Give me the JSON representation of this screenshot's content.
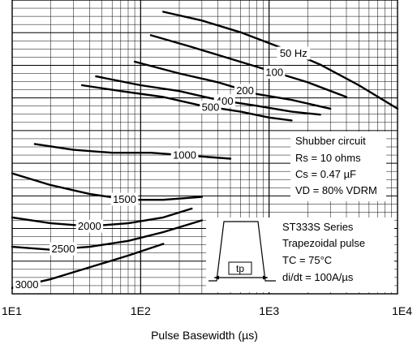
{
  "chart_data": {
    "type": "line",
    "xlabel": "Pulse Basewidth (µs)",
    "x_scale": "log",
    "xlim": [
      10,
      10000
    ],
    "x_ticks": [
      {
        "value": 10,
        "label": "1E1"
      },
      {
        "value": 100,
        "label": "1E2"
      },
      {
        "value": 1000,
        "label": "1E3"
      },
      {
        "value": 10000,
        "label": "1E4"
      }
    ],
    "grid": true,
    "series": [
      {
        "name": "50 Hz",
        "label": "50 Hz",
        "label_x": 1550,
        "x": [
          150,
          300,
          600,
          1200,
          2500,
          5000,
          10000
        ],
        "y": [
          0.96,
          0.93,
          0.89,
          0.84,
          0.78,
          0.71,
          0.63
        ]
      },
      {
        "name": "100",
        "label": "100",
        "label_x": 1100,
        "x": [
          120,
          250,
          500,
          1000,
          2000,
          4000
        ],
        "y": [
          0.88,
          0.84,
          0.8,
          0.76,
          0.72,
          0.67
        ]
      },
      {
        "name": "200",
        "label": "200",
        "label_x": 650,
        "x": [
          90,
          200,
          400,
          800,
          1500,
          3000
        ],
        "y": [
          0.79,
          0.75,
          0.72,
          0.68,
          0.66,
          0.63
        ]
      },
      {
        "name": "400",
        "label": "400",
        "label_x": 450,
        "x": [
          45,
          100,
          200,
          400,
          800,
          1500,
          2500
        ],
        "y": [
          0.74,
          0.71,
          0.69,
          0.66,
          0.64,
          0.62,
          0.61
        ]
      },
      {
        "name": "500",
        "label": "500",
        "label_x": 350,
        "x": [
          35,
          70,
          150,
          300,
          600,
          1000,
          1500
        ],
        "y": [
          0.71,
          0.69,
          0.67,
          0.64,
          0.62,
          0.6,
          0.59
        ]
      },
      {
        "name": "1000",
        "label": "1000",
        "label_x": 220,
        "x": [
          15,
          30,
          60,
          120,
          250,
          500
        ],
        "y": [
          0.51,
          0.49,
          0.48,
          0.48,
          0.47,
          0.46
        ]
      },
      {
        "name": "1500",
        "label": "1500",
        "label_x": 75,
        "x": [
          10,
          20,
          40,
          80,
          150,
          300
        ],
        "y": [
          0.41,
          0.37,
          0.34,
          0.32,
          0.32,
          0.33
        ]
      },
      {
        "name": "2000",
        "label": "2000",
        "label_x": 40,
        "x": [
          10,
          20,
          40,
          80,
          150,
          250
        ],
        "y": [
          0.26,
          0.24,
          0.23,
          0.24,
          0.26,
          0.29
        ]
      },
      {
        "name": "2500",
        "label": "2500",
        "label_x": 25,
        "x": [
          10,
          20,
          40,
          80,
          150,
          300
        ],
        "y": [
          0.16,
          0.15,
          0.16,
          0.18,
          0.21,
          0.25
        ]
      },
      {
        "name": "3000",
        "label": "3000",
        "label_x": 13,
        "x": [
          10,
          20,
          40,
          80,
          150
        ],
        "y": [
          0.02,
          0.05,
          0.09,
          0.13,
          0.17
        ]
      }
    ],
    "annotations": {
      "snubber": [
        "Shubber circuit",
        "Rs = 10 ohms",
        "Cs = 0.47 µF",
        "VD = 80% VDRM"
      ],
      "series_box": [
        "ST333S Series",
        "Trapezoidal pulse",
        "TC = 75°C",
        "di/dt = 100A/µs"
      ],
      "pulse_width_label": "tp"
    }
  }
}
